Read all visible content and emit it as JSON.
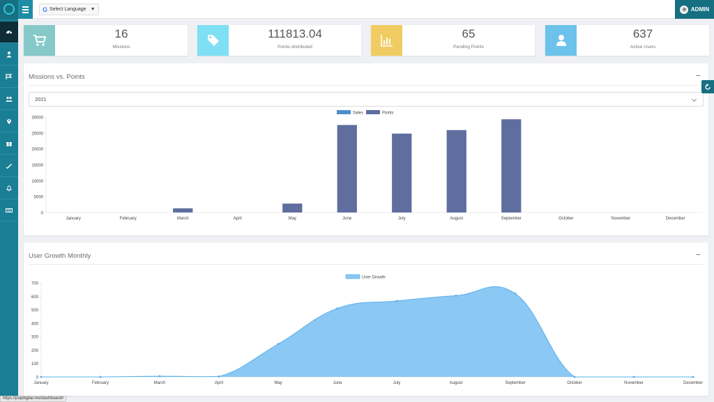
{
  "header": {
    "language_label": "Select Language",
    "user_label": "ADMIN"
  },
  "sidebar": {
    "items": [
      {
        "icon": "dashboard-icon"
      },
      {
        "icon": "user-icon"
      },
      {
        "icon": "mission-icon"
      },
      {
        "icon": "users-group-icon"
      },
      {
        "icon": "map-pin-icon"
      },
      {
        "icon": "gift-icon"
      },
      {
        "icon": "ticket-icon"
      },
      {
        "icon": "bell-icon"
      },
      {
        "icon": "keyboard-icon"
      }
    ]
  },
  "stats": [
    {
      "value": "16",
      "label": "Missions",
      "color": "#86c9c9",
      "icon": "cart-icon"
    },
    {
      "value": "111813.04",
      "label": "Points distributed",
      "color": "#7fdff4",
      "icon": "tags-icon"
    },
    {
      "value": "65",
      "label": "Pending Points",
      "color": "#f1cc62",
      "icon": "bar-chart-icon"
    },
    {
      "value": "637",
      "label": "Active Users",
      "color": "#6cc2ea",
      "icon": "user-icon"
    }
  ],
  "missions_panel": {
    "title": "Missions vs. Points",
    "collapse_label": "–",
    "year": "2021"
  },
  "growth_panel": {
    "title": "User Growth Monthly",
    "collapse_label": "–"
  },
  "status_url": "https://popdigital.me/dashboard#",
  "colors": {
    "sales": "#4f8fc9",
    "points": "#5f6e9f",
    "growth_fill": "#8bc8f4",
    "growth_line": "#5ab0ea",
    "sidebar": "#1a7e95"
  },
  "chart_data": [
    {
      "type": "bar",
      "categories": [
        "January",
        "February",
        "March",
        "April",
        "May",
        "June",
        "July",
        "August",
        "September",
        "October",
        "November",
        "December"
      ],
      "series": [
        {
          "name": "Sales",
          "values": [
            0,
            0,
            0,
            0,
            0,
            0,
            0,
            0,
            0,
            0,
            0,
            0
          ]
        },
        {
          "name": "Points",
          "values": [
            0,
            0,
            1300,
            0,
            2800,
            27500,
            24800,
            25900,
            29300,
            0,
            0,
            0
          ]
        }
      ],
      "yticks": [
        0,
        5000,
        10000,
        15000,
        20000,
        25000,
        30000
      ],
      "ylim": [
        0,
        30000
      ],
      "legend": "top-center",
      "grid": false
    },
    {
      "type": "area",
      "categories": [
        "January",
        "February",
        "March",
        "April",
        "May",
        "June",
        "July",
        "August",
        "September",
        "October",
        "November",
        "December"
      ],
      "series": [
        {
          "name": "User Growth",
          "values": [
            0,
            0,
            5,
            3,
            245,
            510,
            565,
            605,
            620,
            0,
            0,
            0
          ]
        }
      ],
      "yticks": [
        0,
        100,
        200,
        300,
        400,
        500,
        600,
        700
      ],
      "ylim": [
        0,
        700
      ],
      "legend": "top-center",
      "grid": false
    }
  ]
}
